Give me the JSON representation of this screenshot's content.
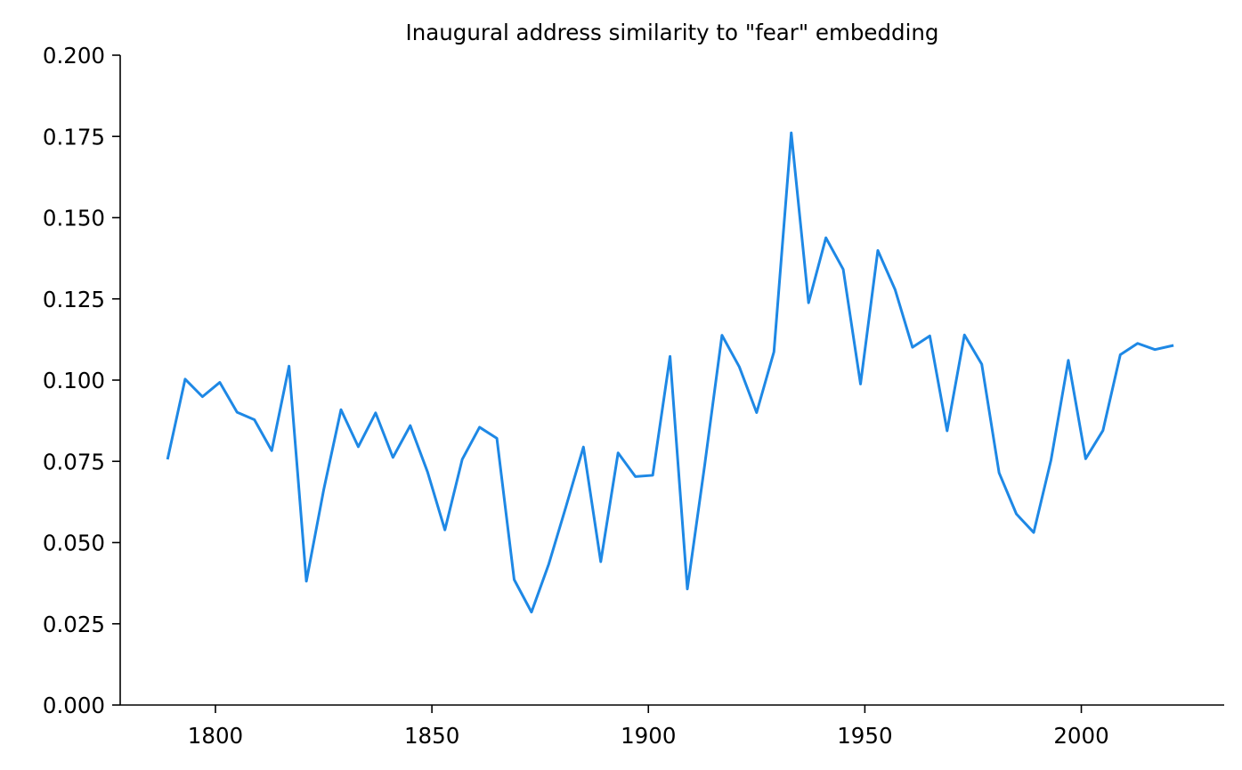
{
  "chart_data": {
    "type": "line",
    "title": "Inaugural address similarity to \"fear\" embedding",
    "xlabel": "",
    "ylabel": "",
    "xlim": [
      1778,
      2033
    ],
    "ylim": [
      0,
      0.2
    ],
    "x_ticks": [
      1800,
      1850,
      1900,
      1950,
      2000
    ],
    "x_tick_labels": [
      "1800",
      "1850",
      "1900",
      "1950",
      "2000"
    ],
    "y_ticks": [
      0,
      0.025,
      0.05,
      0.075,
      0.1,
      0.125,
      0.15,
      0.175,
      0.2
    ],
    "y_tick_labels": [
      "0.000",
      "0.025",
      "0.050",
      "0.075",
      "0.100",
      "0.125",
      "0.150",
      "0.175",
      "0.200"
    ],
    "grid": false,
    "series": [
      {
        "color": "#1e88e5",
        "x": [
          1789,
          1793,
          1797,
          1801,
          1805,
          1809,
          1813,
          1817,
          1821,
          1825,
          1829,
          1833,
          1837,
          1841,
          1845,
          1849,
          1853,
          1857,
          1861,
          1865,
          1869,
          1873,
          1877,
          1881,
          1885,
          1889,
          1893,
          1897,
          1901,
          1905,
          1909,
          1913,
          1917,
          1921,
          1925,
          1929,
          1933,
          1937,
          1941,
          1945,
          1949,
          1953,
          1957,
          1961,
          1965,
          1969,
          1973,
          1977,
          1981,
          1985,
          1989,
          1993,
          1997,
          2001,
          2005,
          2009,
          2013,
          2017,
          2021
        ],
        "y": [
          0.076,
          0.1003,
          0.0949,
          0.0993,
          0.0901,
          0.0878,
          0.0783,
          0.1043,
          0.0381,
          0.0662,
          0.0909,
          0.0795,
          0.0899,
          0.0762,
          0.086,
          0.0717,
          0.0539,
          0.0756,
          0.0855,
          0.0821,
          0.0386,
          0.0286,
          0.0434,
          0.0612,
          0.0794,
          0.0441,
          0.0776,
          0.0703,
          0.0707,
          0.1073,
          0.0357,
          0.0738,
          0.1138,
          0.1041,
          0.09,
          0.1087,
          0.1761,
          0.1238,
          0.1438,
          0.1341,
          0.0988,
          0.1399,
          0.1278,
          0.1101,
          0.1136,
          0.0844,
          0.1139,
          0.1049,
          0.0715,
          0.0588,
          0.0531,
          0.0754,
          0.1061,
          0.0758,
          0.0845,
          0.1078,
          0.1113,
          0.1094,
          0.1106
        ]
      }
    ]
  }
}
